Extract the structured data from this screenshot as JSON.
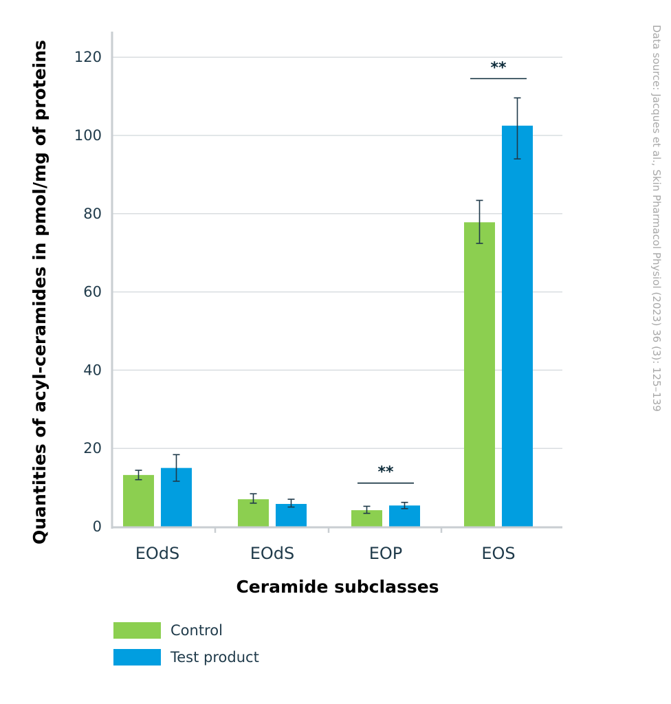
{
  "chart_data": {
    "type": "bar",
    "categories": [
      "EOdS",
      "EOdS",
      "EOP",
      "EOS"
    ],
    "series": [
      {
        "name": "Control",
        "color": "#8ccf50",
        "values": [
          13.2,
          7.0,
          4.2,
          77.8
        ],
        "error": [
          [
            12.0,
            14.4
          ],
          [
            6.0,
            8.4
          ],
          [
            3.4,
            5.2
          ],
          [
            72.4,
            83.4
          ]
        ]
      },
      {
        "name": "Test product",
        "color": "#019ee0",
        "values": [
          15.0,
          5.8,
          5.4,
          102.5
        ],
        "error": [
          [
            11.6,
            18.4
          ],
          [
            5.0,
            7.0
          ],
          [
            4.6,
            6.2
          ],
          [
            94.0,
            109.6
          ]
        ]
      }
    ],
    "significance": [
      {
        "category_index": 2,
        "label": "**"
      },
      {
        "category_index": 3,
        "label": "**"
      }
    ],
    "yticks": [
      0,
      20,
      40,
      60,
      80,
      100,
      120
    ],
    "ylim": [
      0,
      127
    ],
    "xlabel": "Ceramide subclasses",
    "ylabel": "Quantities of acyl-ceramides in pmol/mg of proteins",
    "grid": true,
    "legend": "bottom-left"
  },
  "source_note": "Data source: Jacques et al., Skin Pharmacol Physiol (2023) 36 (3): 125–139"
}
